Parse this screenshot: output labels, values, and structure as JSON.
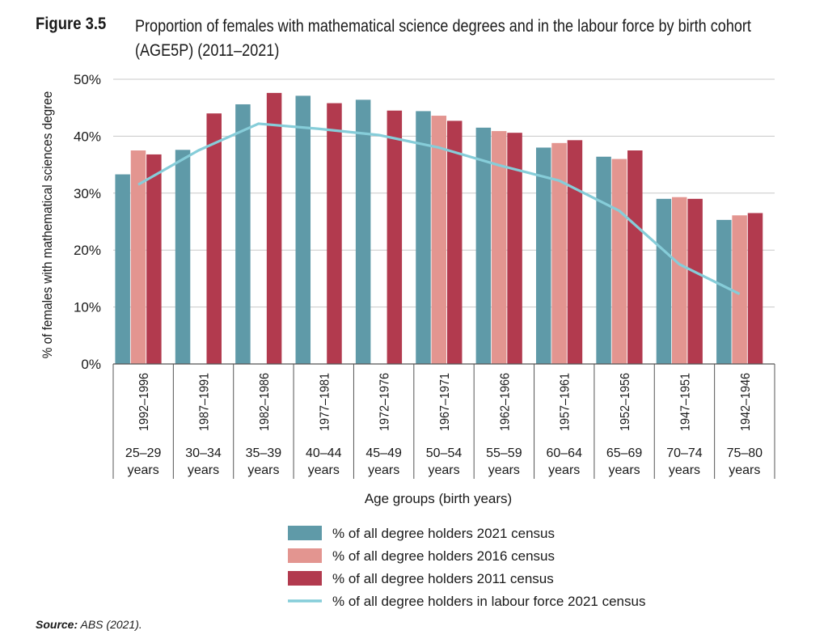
{
  "figure": {
    "label": "Figure 3.5",
    "title": "Proportion of females with mathematical science degrees and in the labour force by birth cohort (AGE5P) (2011–2021)",
    "source_label": "Source:",
    "source_text": "ABS (2021)."
  },
  "chart_data": {
    "type": "bar",
    "title": "Proportion of females with mathematical science degrees and in the labour force by birth cohort (AGE5P) (2011–2021)",
    "xlabel": "Age groups (birth years)",
    "ylabel": "% of females with mathematical sciences degree",
    "ylim": [
      0,
      50
    ],
    "yticks": [
      "0%",
      "10%",
      "20%",
      "30%",
      "40%",
      "50%"
    ],
    "grid": true,
    "legend": "bottom",
    "categories": [
      "1992–1996",
      "1987–1991",
      "1982–1986",
      "1977–1981",
      "1972–1976",
      "1967–1971",
      "1962–1966",
      "1957–1961",
      "1952–1956",
      "1947–1951",
      "1942–1946"
    ],
    "age_groups": [
      "25–29",
      "30–34",
      "35–39",
      "40–44",
      "45–49",
      "50–54",
      "55–59",
      "60–64",
      "65–69",
      "70–74",
      "75–80"
    ],
    "age_unit": "years",
    "series": [
      {
        "name": "% of all degree holders 2021 census",
        "kind": "bar",
        "color": "#5f9aa8",
        "values": [
          33.3,
          37.6,
          45.6,
          47.1,
          46.4,
          44.4,
          41.5,
          38.0,
          36.4,
          29.0,
          25.3
        ]
      },
      {
        "name": "% of all degree holders 2016 census",
        "kind": "bar",
        "color": "#e39590",
        "values": [
          37.5,
          null,
          null,
          null,
          null,
          43.6,
          40.9,
          38.8,
          36.0,
          29.3,
          26.1
        ]
      },
      {
        "name": "% of all degree holders 2011 census",
        "kind": "bar",
        "color": "#b23a4e",
        "values": [
          36.8,
          44.0,
          47.6,
          45.8,
          44.5,
          42.7,
          40.6,
          39.3,
          37.5,
          29.0,
          26.5
        ]
      },
      {
        "name": "% of all degree holders in labour force 2021 census",
        "kind": "line",
        "color": "#86cdd9",
        "values": [
          31.5,
          37.5,
          42.2,
          41.3,
          40.2,
          38.0,
          34.9,
          32.2,
          26.9,
          17.5,
          12.3
        ]
      }
    ]
  }
}
